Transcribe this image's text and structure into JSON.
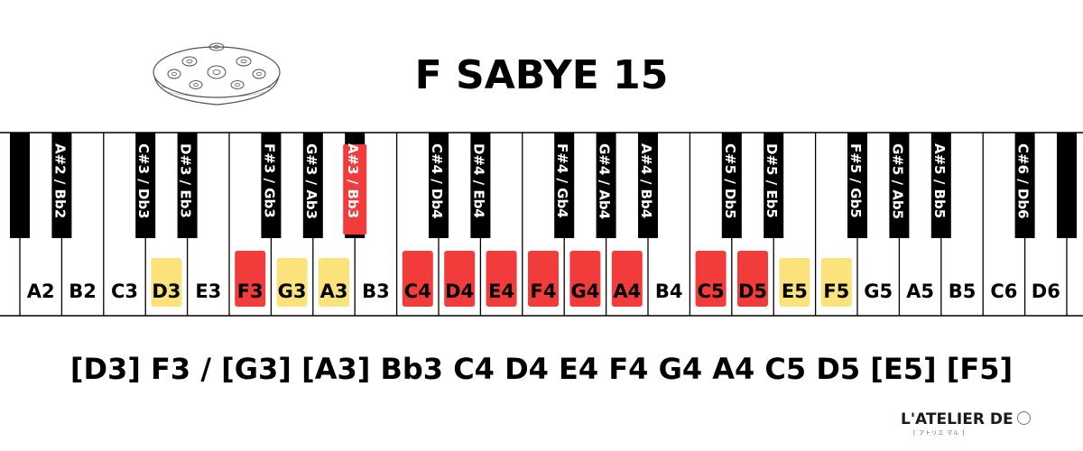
{
  "title": "F SABYE 15",
  "scale_text": "[D3] F3 / [G3] [A3] Bb3 C4 D4 E4 F4 G4 A4 C5 D5 [E5] [F5]",
  "brand": {
    "name": "L'ATELIER DE",
    "sub": "[ アトリエ マル ]"
  },
  "colors": {
    "main": "#f23b3b",
    "ding": "#fbe27a",
    "black": "#000000",
    "white": "#ffffff"
  },
  "white_keys": [
    {
      "label": "A2",
      "hl": null
    },
    {
      "label": "B2",
      "hl": null
    },
    {
      "label": "C3",
      "hl": null
    },
    {
      "label": "D3",
      "hl": "yellow"
    },
    {
      "label": "E3",
      "hl": null
    },
    {
      "label": "F3",
      "hl": "red"
    },
    {
      "label": "G3",
      "hl": "yellow"
    },
    {
      "label": "A3",
      "hl": "yellow"
    },
    {
      "label": "B3",
      "hl": null
    },
    {
      "label": "C4",
      "hl": "red"
    },
    {
      "label": "D4",
      "hl": "red"
    },
    {
      "label": "E4",
      "hl": "red"
    },
    {
      "label": "F4",
      "hl": "red"
    },
    {
      "label": "G4",
      "hl": "red"
    },
    {
      "label": "A4",
      "hl": "red"
    },
    {
      "label": "B4",
      "hl": null
    },
    {
      "label": "C5",
      "hl": "red"
    },
    {
      "label": "D5",
      "hl": "red"
    },
    {
      "label": "E5",
      "hl": "yellow"
    },
    {
      "label": "F5",
      "hl": "yellow"
    },
    {
      "label": "G5",
      "hl": null
    },
    {
      "label": "A5",
      "hl": null
    },
    {
      "label": "B5",
      "hl": null
    },
    {
      "label": "C6",
      "hl": null
    },
    {
      "label": "D6",
      "hl": null
    }
  ],
  "black_keys": [
    {
      "label": "",
      "after": -1,
      "hl": null
    },
    {
      "label": "A#2 / Bb2",
      "after": 0,
      "hl": null
    },
    {
      "label": "C#3 / Db3",
      "after": 2,
      "hl": null
    },
    {
      "label": "D#3 / Eb3",
      "after": 3,
      "hl": null
    },
    {
      "label": "F#3 / Gb3",
      "after": 5,
      "hl": null
    },
    {
      "label": "G#3 / Ab3",
      "after": 6,
      "hl": null
    },
    {
      "label": "A#3 / Bb3",
      "after": 7,
      "hl": "red"
    },
    {
      "label": "C#4 / Db4",
      "after": 9,
      "hl": null
    },
    {
      "label": "D#4 / Eb4",
      "after": 10,
      "hl": null
    },
    {
      "label": "F#4 / Gb4",
      "after": 12,
      "hl": null
    },
    {
      "label": "G#4 / Ab4",
      "after": 13,
      "hl": null
    },
    {
      "label": "A#4 / Bb4",
      "after": 14,
      "hl": null
    },
    {
      "label": "C#5 / Db5",
      "after": 16,
      "hl": null
    },
    {
      "label": "D#5 / Eb5",
      "after": 17,
      "hl": null
    },
    {
      "label": "F#5 / Gb5",
      "after": 19,
      "hl": null
    },
    {
      "label": "G#5 / Ab5",
      "after": 20,
      "hl": null
    },
    {
      "label": "A#5 / Bb5",
      "after": 21,
      "hl": null
    },
    {
      "label": "C#6 / Db6",
      "after": 23,
      "hl": null
    },
    {
      "label": "",
      "after": 24,
      "hl": null
    }
  ]
}
